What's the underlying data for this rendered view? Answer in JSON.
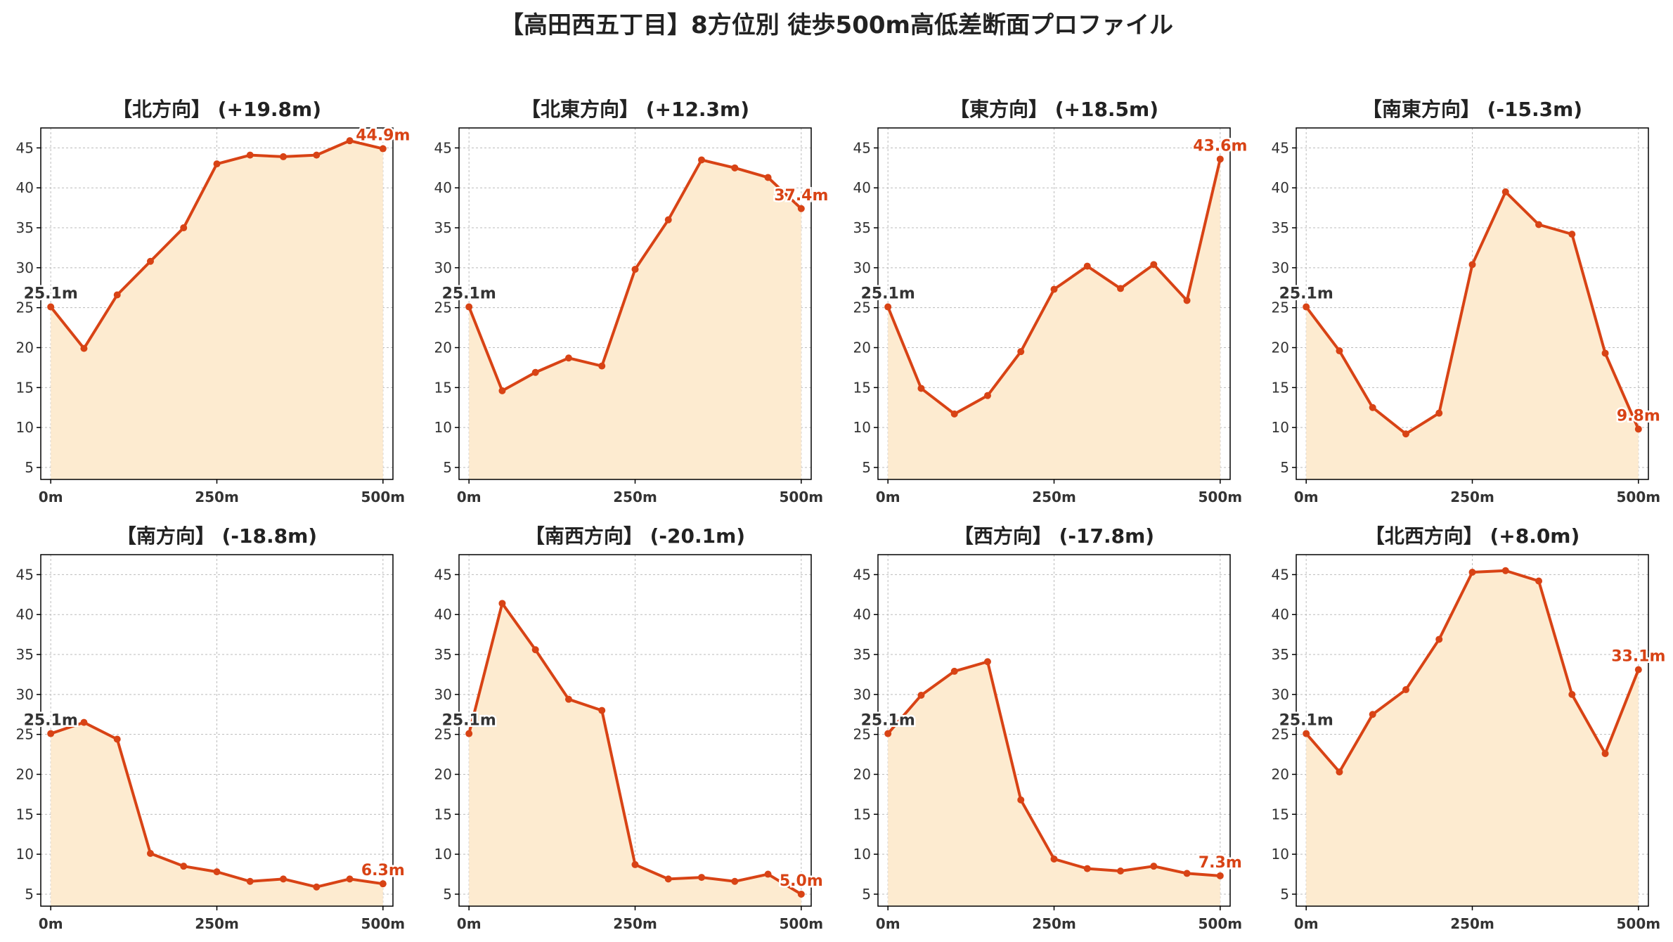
{
  "title": "【高田西五丁目】8方位別 徒歩500m高低差断面プロファイル",
  "colors": {
    "line": "#D84315",
    "fill": "#FDEBD0",
    "start_label": "#333333",
    "end_label": "#D84315",
    "grid": "#BBBBBB",
    "tick_label": "#333333"
  },
  "chart_data": [
    {
      "type": "area",
      "title": "【北方向】 (+19.8m)",
      "x": [
        0,
        50,
        100,
        150,
        200,
        250,
        300,
        350,
        400,
        450,
        500
      ],
      "x_ticks": [
        0,
        250,
        500
      ],
      "x_tick_labels": [
        "0m",
        "250m",
        "500m"
      ],
      "y_ticks": [
        5,
        10,
        15,
        20,
        25,
        30,
        35,
        40,
        45
      ],
      "xlim": [
        -15,
        515
      ],
      "ylim": [
        3.5,
        47.5
      ],
      "grid": true,
      "series": [
        {
          "values": [
            25.1,
            19.9,
            26.6,
            30.8,
            35.0,
            43.0,
            44.1,
            43.9,
            44.1,
            45.9,
            44.9
          ]
        }
      ],
      "start_label": "25.1m",
      "end_label": "44.9m"
    },
    {
      "type": "area",
      "title": "【北東方向】 (+12.3m)",
      "x": [
        0,
        50,
        100,
        150,
        200,
        250,
        300,
        350,
        400,
        450,
        500
      ],
      "x_ticks": [
        0,
        250,
        500
      ],
      "x_tick_labels": [
        "0m",
        "250m",
        "500m"
      ],
      "y_ticks": [
        5,
        10,
        15,
        20,
        25,
        30,
        35,
        40,
        45
      ],
      "xlim": [
        -15,
        515
      ],
      "ylim": [
        3.5,
        47.5
      ],
      "grid": true,
      "series": [
        {
          "values": [
            25.1,
            14.6,
            16.9,
            18.7,
            17.7,
            29.8,
            36.0,
            43.5,
            42.5,
            41.3,
            37.4
          ]
        }
      ],
      "start_label": "25.1m",
      "end_label": "37.4m"
    },
    {
      "type": "area",
      "title": "【東方向】 (+18.5m)",
      "x": [
        0,
        50,
        100,
        150,
        200,
        250,
        300,
        350,
        400,
        450,
        500
      ],
      "x_ticks": [
        0,
        250,
        500
      ],
      "x_tick_labels": [
        "0m",
        "250m",
        "500m"
      ],
      "y_ticks": [
        5,
        10,
        15,
        20,
        25,
        30,
        35,
        40,
        45
      ],
      "xlim": [
        -15,
        515
      ],
      "ylim": [
        3.5,
        47.5
      ],
      "grid": true,
      "series": [
        {
          "values": [
            25.1,
            14.9,
            11.7,
            14.0,
            19.5,
            27.3,
            30.2,
            27.4,
            30.4,
            25.9,
            43.6
          ]
        }
      ],
      "start_label": "25.1m",
      "end_label": "43.6m"
    },
    {
      "type": "area",
      "title": "【南東方向】 (-15.3m)",
      "x": [
        0,
        50,
        100,
        150,
        200,
        250,
        300,
        350,
        400,
        450,
        500
      ],
      "x_ticks": [
        0,
        250,
        500
      ],
      "x_tick_labels": [
        "0m",
        "250m",
        "500m"
      ],
      "y_ticks": [
        5,
        10,
        15,
        20,
        25,
        30,
        35,
        40,
        45
      ],
      "xlim": [
        -15,
        515
      ],
      "ylim": [
        3.5,
        47.5
      ],
      "grid": true,
      "series": [
        {
          "values": [
            25.1,
            19.6,
            12.5,
            9.2,
            11.8,
            30.4,
            39.5,
            35.4,
            34.2,
            19.3,
            9.8
          ]
        }
      ],
      "start_label": "25.1m",
      "end_label": "9.8m"
    },
    {
      "type": "area",
      "title": "【南方向】 (-18.8m)",
      "x": [
        0,
        50,
        100,
        150,
        200,
        250,
        300,
        350,
        400,
        450,
        500
      ],
      "x_ticks": [
        0,
        250,
        500
      ],
      "x_tick_labels": [
        "0m",
        "250m",
        "500m"
      ],
      "y_ticks": [
        5,
        10,
        15,
        20,
        25,
        30,
        35,
        40,
        45
      ],
      "xlim": [
        -15,
        515
      ],
      "ylim": [
        3.5,
        47.5
      ],
      "grid": true,
      "series": [
        {
          "values": [
            25.1,
            26.5,
            24.4,
            10.1,
            8.5,
            7.8,
            6.6,
            6.9,
            5.9,
            6.9,
            6.3
          ]
        }
      ],
      "start_label": "25.1m",
      "end_label": "6.3m"
    },
    {
      "type": "area",
      "title": "【南西方向】 (-20.1m)",
      "x": [
        0,
        50,
        100,
        150,
        200,
        250,
        300,
        350,
        400,
        450,
        500
      ],
      "x_ticks": [
        0,
        250,
        500
      ],
      "x_tick_labels": [
        "0m",
        "250m",
        "500m"
      ],
      "y_ticks": [
        5,
        10,
        15,
        20,
        25,
        30,
        35,
        40,
        45
      ],
      "xlim": [
        -15,
        515
      ],
      "ylim": [
        3.5,
        47.5
      ],
      "grid": true,
      "series": [
        {
          "values": [
            25.1,
            41.4,
            35.6,
            29.4,
            28.0,
            8.7,
            6.9,
            7.1,
            6.6,
            7.5,
            5.0
          ]
        }
      ],
      "start_label": "25.1m",
      "end_label": "5.0m"
    },
    {
      "type": "area",
      "title": "【西方向】 (-17.8m)",
      "x": [
        0,
        50,
        100,
        150,
        200,
        250,
        300,
        350,
        400,
        450,
        500
      ],
      "x_ticks": [
        0,
        250,
        500
      ],
      "x_tick_labels": [
        "0m",
        "250m",
        "500m"
      ],
      "y_ticks": [
        5,
        10,
        15,
        20,
        25,
        30,
        35,
        40,
        45
      ],
      "xlim": [
        -15,
        515
      ],
      "ylim": [
        3.5,
        47.5
      ],
      "grid": true,
      "series": [
        {
          "values": [
            25.1,
            29.9,
            32.9,
            34.1,
            16.8,
            9.4,
            8.2,
            7.9,
            8.5,
            7.6,
            7.3
          ]
        }
      ],
      "start_label": "25.1m",
      "end_label": "7.3m"
    },
    {
      "type": "area",
      "title": "【北西方向】 (+8.0m)",
      "x": [
        0,
        50,
        100,
        150,
        200,
        250,
        300,
        350,
        400,
        450,
        500
      ],
      "x_ticks": [
        0,
        250,
        500
      ],
      "x_tick_labels": [
        "0m",
        "250m",
        "500m"
      ],
      "y_ticks": [
        5,
        10,
        15,
        20,
        25,
        30,
        35,
        40,
        45
      ],
      "xlim": [
        -15,
        515
      ],
      "ylim": [
        3.5,
        47.5
      ],
      "grid": true,
      "series": [
        {
          "values": [
            25.1,
            20.3,
            27.5,
            30.6,
            36.9,
            45.3,
            45.5,
            44.2,
            30.0,
            22.6,
            33.1
          ]
        }
      ],
      "start_label": "25.1m",
      "end_label": "33.1m"
    }
  ]
}
